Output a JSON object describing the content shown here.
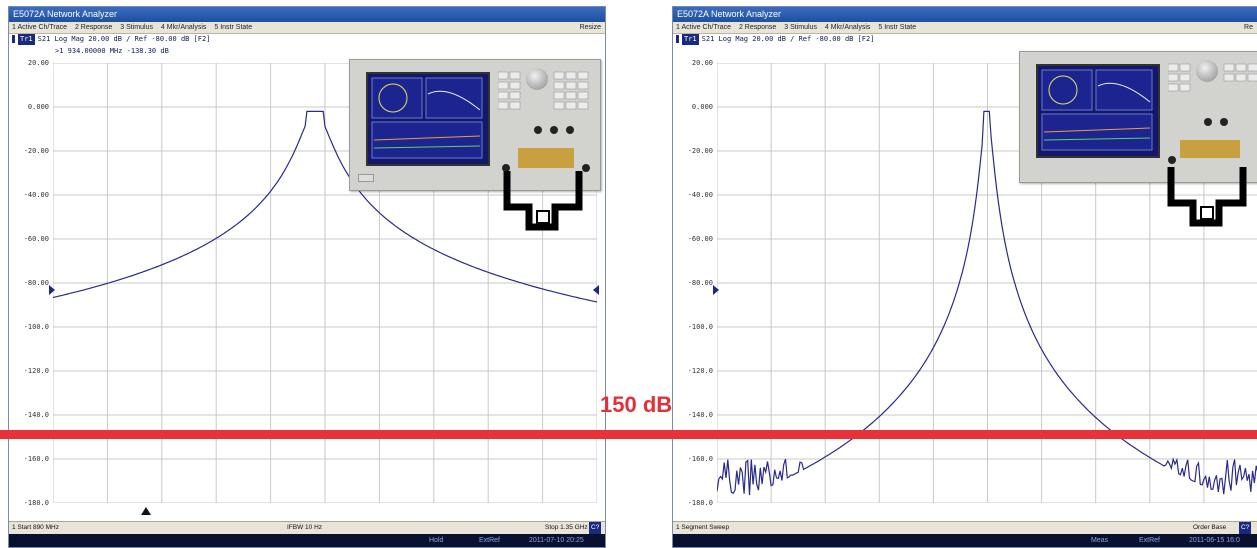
{
  "left_window": {
    "title": "E5072A Network Analyzer",
    "menu": [
      "1 Active Ch/Trace",
      "2 Response",
      "3 Stimulus",
      "4 Mkr/Analysis",
      "5 Instr State"
    ],
    "menu_right": "Resize",
    "trace_tag": "Tr1",
    "trace_info": "S21 Log Mag 20.00 dB / Ref -80.00 dB [F2]",
    "marker_readout": ">1  934.00000 MHz -138.30 dB",
    "y_ticks": [
      "20.00",
      "0.000",
      "-20.00",
      "-40.00",
      "-60.00",
      "-80.00",
      "-100.0",
      "-120.0",
      "-140.0",
      "-160.0",
      "-180.0"
    ],
    "status_start": "1  Start 890 MHz",
    "status_ifbw": "IFBW 10 Hz",
    "status_stop": "Stop 1.35 GHz",
    "status_stop_btn": "C?",
    "footer": {
      "hold": "Hold",
      "extref": "ExtRef",
      "timestamp": "2011-07-10 20:25"
    }
  },
  "right_window": {
    "title": "E5072A Network Analyzer",
    "menu": [
      "1 Active Ch/Trace",
      "2 Response",
      "3 Stimulus",
      "4 Mkr/Analysis",
      "5 Instr State"
    ],
    "menu_right": "Re",
    "trace_tag": "Tr1",
    "trace_info": "S21 Log Mag 20.00 dB / Ref -80.00 dB [F2]",
    "y_ticks": [
      "20.00",
      "0.000",
      "-20.00",
      "-40.00",
      "-60.00",
      "-80.00",
      "-100.0",
      "-120.0",
      "-140.0",
      "-160.0",
      "-180.0"
    ],
    "status_left": "1  Segment Sweep",
    "status_right": "Order Base",
    "status_right_btn": "C?",
    "footer": {
      "meas": "Meas",
      "extref": "ExtRef",
      "timestamp": "2011-06-15 16:0"
    }
  },
  "annotation": {
    "label": "150 dB",
    "line_color": "#e8323a"
  },
  "colors": {
    "trace": "#2a2a8a",
    "grid": "#c8c8c8",
    "title_bar": "#1e4fa0"
  }
}
